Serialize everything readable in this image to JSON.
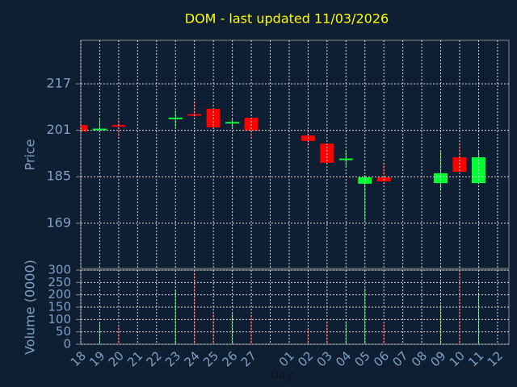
{
  "chart_data": {
    "type": "candlestick",
    "title": "DOM - last updated 11/03/2026",
    "ylabel": "Price",
    "xlabel": "Day",
    "categories": [
      "18",
      "19",
      "20",
      "21",
      "22",
      "23",
      "24",
      "25",
      "26",
      "27",
      null,
      "01",
      "02",
      "03",
      "04",
      "05",
      "06",
      "07",
      "08",
      "09",
      "10",
      "11",
      "12"
    ],
    "open": [
      202.8,
      201.0,
      202.5,
      null,
      null,
      204.8,
      206.3,
      208.4,
      203.1,
      205.3,
      null,
      null,
      199.2,
      196.4,
      190.8,
      182.6,
      184.8,
      null,
      null,
      182.8,
      191.7,
      182.8,
      null
    ],
    "high": [
      202.8,
      204.8,
      204.8,
      null,
      null,
      207.8,
      211.2,
      208.4,
      205.0,
      205.3,
      null,
      null,
      200.9,
      196.4,
      193.9,
      185.6,
      189.8,
      null,
      null,
      193.9,
      196.7,
      193.9,
      null
    ],
    "low": [
      200.6,
      201.0,
      198.7,
      null,
      null,
      202.0,
      205.6,
      202.0,
      201.4,
      198.1,
      null,
      null,
      195.6,
      189.8,
      188.4,
      169.8,
      183.4,
      null,
      null,
      180.1,
      186.7,
      182.8,
      null
    ],
    "close": [
      200.6,
      201.3,
      202.2,
      null,
      null,
      205.1,
      205.9,
      202.0,
      203.6,
      200.9,
      null,
      null,
      197.3,
      189.8,
      191.0,
      184.8,
      183.4,
      null,
      null,
      186.2,
      186.7,
      191.7,
      null
    ],
    "ylim": [
      153.4,
      232
    ],
    "yticks": [
      169,
      185,
      201,
      217
    ],
    "up_color": "#00ff33",
    "down_color": "#ff0000",
    "grid": true,
    "volume": {
      "type": "bar",
      "ylabel": "Volume (0000)",
      "values": [
        null,
        88,
        72,
        null,
        null,
        218,
        290,
        127,
        127,
        120,
        null,
        null,
        62,
        94,
        94,
        225,
        88,
        null,
        null,
        160,
        300,
        208,
        null
      ],
      "ylim": [
        0,
        300
      ],
      "yticks": [
        0,
        50,
        100,
        150,
        200,
        250,
        300
      ]
    }
  }
}
